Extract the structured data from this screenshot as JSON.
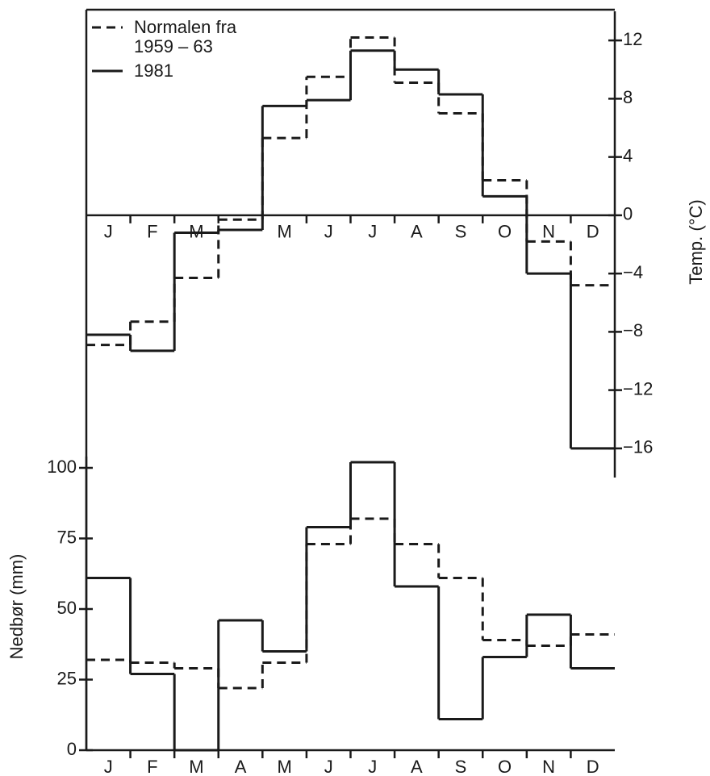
{
  "chart_data": [
    {
      "type": "step",
      "ylabel": "Temp. (°C)",
      "yaxis_position": "right",
      "legend": "upper left",
      "categories": [
        "J",
        "F",
        "M",
        null,
        "M",
        "J",
        "J",
        "A",
        "S",
        "O",
        "N",
        "D"
      ],
      "ylim": [
        -18,
        14
      ],
      "yticks": [
        12,
        8,
        4,
        0,
        {
          "value": -4,
          "label": "−4"
        },
        {
          "value": -8,
          "label": "−8"
        },
        {
          "value": -12,
          "label": "−12"
        },
        {
          "value": -16,
          "label": "−16"
        }
      ],
      "series": [
        {
          "name": "Normalen fra 1959 – 63",
          "color": "#1a1a1a",
          "linestyle": "dashed",
          "values": [
            -8.9,
            -7.3,
            -4.3,
            -0.3,
            5.3,
            9.5,
            12.2,
            9.1,
            7.0,
            2.4,
            -1.8,
            -4.8
          ]
        },
        {
          "name": "1981",
          "color": "#1a1a1a",
          "linestyle": "solid",
          "values": [
            -8.2,
            -9.3,
            -1.2,
            -1.0,
            7.5,
            7.9,
            11.3,
            10.0,
            8.3,
            1.3,
            -4.0,
            -16.0
          ]
        }
      ]
    },
    {
      "type": "step",
      "ylabel": "Nedbør (mm)",
      "yaxis_position": "left",
      "categories": [
        "J",
        "F",
        "M",
        "A",
        "M",
        "J",
        "J",
        "A",
        "S",
        "O",
        "N",
        "D"
      ],
      "ylim": [
        0,
        104
      ],
      "yticks": [
        0,
        25,
        50,
        75,
        100
      ],
      "series": [
        {
          "name": "Normalen fra 1959 – 63",
          "color": "#1a1a1a",
          "linestyle": "dashed",
          "values": [
            32,
            31,
            29,
            22,
            31,
            73,
            82,
            73,
            61,
            39,
            37,
            41
          ]
        },
        {
          "name": "1981",
          "color": "#1a1a1a",
          "linestyle": "solid",
          "values": [
            61,
            27,
            0,
            46,
            35,
            79,
            102,
            58,
            11,
            33,
            48,
            29
          ]
        }
      ]
    }
  ]
}
